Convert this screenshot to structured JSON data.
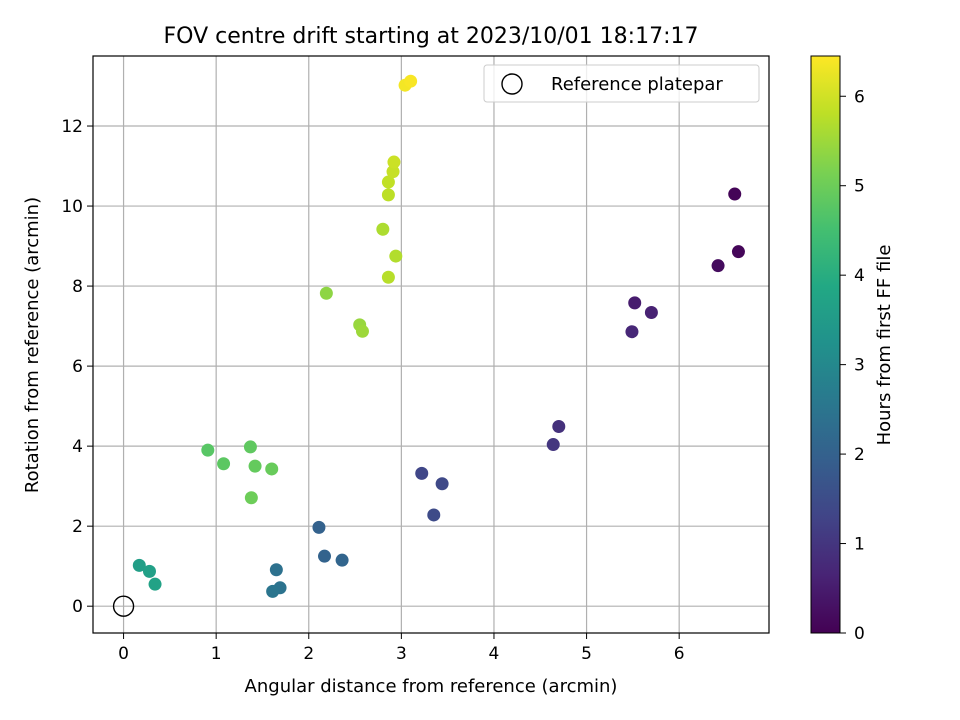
{
  "chart_data": {
    "type": "scatter",
    "title": "FOV centre drift starting at 2023/10/01 18:17:17",
    "xlabel": "Angular distance from reference (arcmin)",
    "ylabel": "Rotation from reference (arcmin)",
    "xlim": [
      -0.33,
      6.97
    ],
    "ylim": [
      -0.67,
      13.75
    ],
    "xticks": [
      0,
      1,
      2,
      3,
      4,
      5,
      6
    ],
    "yticks": [
      0,
      2,
      4,
      6,
      8,
      10,
      12
    ],
    "grid": true,
    "legend": {
      "position": "top-right",
      "entries": [
        "Reference platepar"
      ]
    },
    "reference_point": {
      "x": 0,
      "y": 0,
      "label": "Reference platepar"
    },
    "colorbar": {
      "label": "Hours from first FF file",
      "colormap": "viridis",
      "range": [
        0,
        6.45
      ],
      "ticks": [
        0,
        1,
        2,
        3,
        4,
        5,
        6
      ]
    },
    "points": [
      {
        "x": 6.6,
        "y": 10.3,
        "c": 0.05
      },
      {
        "x": 6.64,
        "y": 8.86,
        "c": 0.1
      },
      {
        "x": 6.42,
        "y": 8.51,
        "c": 0.2
      },
      {
        "x": 5.52,
        "y": 7.58,
        "c": 0.5
      },
      {
        "x": 5.7,
        "y": 7.34,
        "c": 0.6
      },
      {
        "x": 5.49,
        "y": 6.86,
        "c": 0.7
      },
      {
        "x": 4.7,
        "y": 4.49,
        "c": 0.9
      },
      {
        "x": 4.64,
        "y": 4.04,
        "c": 1.0
      },
      {
        "x": 3.22,
        "y": 3.32,
        "c": 1.35
      },
      {
        "x": 3.44,
        "y": 3.06,
        "c": 1.4
      },
      {
        "x": 3.35,
        "y": 2.28,
        "c": 1.45
      },
      {
        "x": 2.11,
        "y": 1.97,
        "c": 2.0
      },
      {
        "x": 2.17,
        "y": 1.25,
        "c": 2.05
      },
      {
        "x": 2.36,
        "y": 1.15,
        "c": 2.1
      },
      {
        "x": 1.65,
        "y": 0.91,
        "c": 2.4
      },
      {
        "x": 1.69,
        "y": 0.46,
        "c": 2.45
      },
      {
        "x": 1.61,
        "y": 0.37,
        "c": 2.5
      },
      {
        "x": 0.17,
        "y": 1.02,
        "c": 3.6
      },
      {
        "x": 0.28,
        "y": 0.87,
        "c": 3.65
      },
      {
        "x": 0.34,
        "y": 0.55,
        "c": 3.7
      },
      {
        "x": 0.91,
        "y": 3.9,
        "c": 4.75
      },
      {
        "x": 1.08,
        "y": 3.56,
        "c": 4.8
      },
      {
        "x": 1.37,
        "y": 3.98,
        "c": 4.85
      },
      {
        "x": 1.42,
        "y": 3.5,
        "c": 4.9
      },
      {
        "x": 1.6,
        "y": 3.43,
        "c": 4.95
      },
      {
        "x": 1.38,
        "y": 2.71,
        "c": 5.0
      },
      {
        "x": 2.19,
        "y": 7.82,
        "c": 5.35
      },
      {
        "x": 2.55,
        "y": 7.03,
        "c": 5.45
      },
      {
        "x": 2.58,
        "y": 6.87,
        "c": 5.5
      },
      {
        "x": 2.8,
        "y": 9.42,
        "c": 5.65
      },
      {
        "x": 2.94,
        "y": 8.75,
        "c": 5.7
      },
      {
        "x": 2.86,
        "y": 8.22,
        "c": 5.75
      },
      {
        "x": 2.86,
        "y": 10.28,
        "c": 5.8
      },
      {
        "x": 2.86,
        "y": 10.6,
        "c": 5.85
      },
      {
        "x": 2.91,
        "y": 10.86,
        "c": 5.9
      },
      {
        "x": 2.92,
        "y": 11.1,
        "c": 5.95
      },
      {
        "x": 3.04,
        "y": 13.02,
        "c": 6.35
      },
      {
        "x": 3.1,
        "y": 13.12,
        "c": 6.4
      }
    ]
  }
}
